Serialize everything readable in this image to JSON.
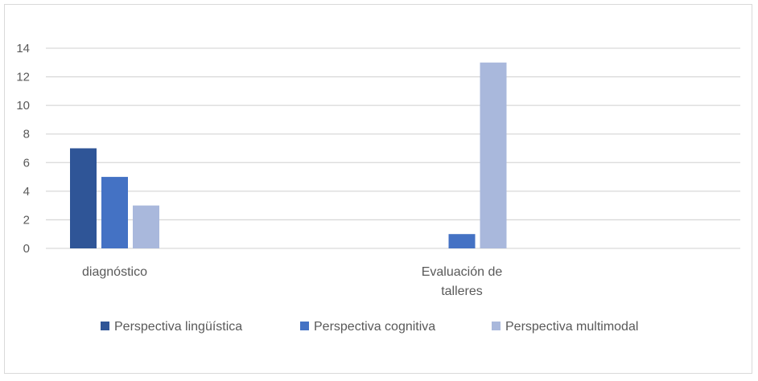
{
  "chart_data": {
    "type": "bar",
    "title": "",
    "xlabel": "",
    "ylabel": "",
    "ylim": [
      0,
      14
    ],
    "yticks": [
      0,
      2,
      4,
      6,
      8,
      10,
      12,
      14
    ],
    "grid": true,
    "legend_position": "bottom",
    "categories": [
      [
        "diagnóstico"
      ],
      [
        "Evaluación de",
        "talleres"
      ]
    ],
    "series": [
      {
        "name": "Perspectiva lingüística",
        "color": "#2f5597",
        "values": [
          7,
          0
        ]
      },
      {
        "name": "Perspectiva cognitiva",
        "color": "#4472c4",
        "values": [
          5,
          1
        ]
      },
      {
        "name": "Perspectiva multimodal",
        "color": "#a9b8dc",
        "values": [
          3,
          13
        ]
      }
    ]
  }
}
